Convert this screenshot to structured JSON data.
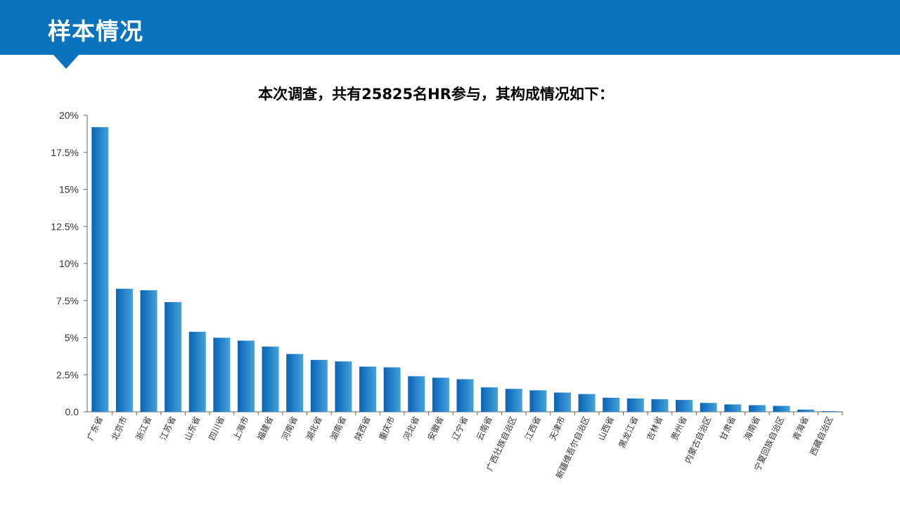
{
  "header": {
    "title": "样本情况"
  },
  "subtitle": "本次调查，共有25825名HR参与，其构成情况如下：",
  "colors": {
    "header": "#0b73bd",
    "bar_dark": "#0a63b4",
    "bar_light": "#43a3dd",
    "axis": "#666666"
  },
  "chart_data": {
    "type": "bar",
    "title": "",
    "xlabel": "",
    "ylabel": "",
    "ylim": [
      0,
      20
    ],
    "y_ticks": [
      "0.0",
      "2.5%",
      "5%",
      "7.5%",
      "10%",
      "12.5%",
      "15%",
      "17.5%",
      "20%"
    ],
    "categories": [
      "广东省",
      "北京市",
      "浙江省",
      "江苏省",
      "山东省",
      "四川省",
      "上海市",
      "福建省",
      "河南省",
      "湖北省",
      "湖南省",
      "陕西省",
      "重庆市",
      "河北省",
      "安徽省",
      "辽宁省",
      "云南省",
      "广西壮族自治区",
      "江西省",
      "天津市",
      "新疆维吾尔自治区",
      "山西省",
      "黑龙江省",
      "吉林省",
      "贵州省",
      "内蒙古自治区",
      "甘肃省",
      "海南省",
      "宁夏回族自治区",
      "青海省",
      "西藏自治区"
    ],
    "values": [
      19.2,
      8.3,
      8.2,
      7.4,
      5.4,
      5.0,
      4.8,
      4.4,
      3.9,
      3.5,
      3.4,
      3.05,
      3.0,
      2.4,
      2.3,
      2.2,
      1.65,
      1.55,
      1.45,
      1.3,
      1.2,
      0.95,
      0.9,
      0.85,
      0.8,
      0.6,
      0.5,
      0.45,
      0.4,
      0.15,
      0.05
    ],
    "grid": false,
    "legend": "none"
  }
}
